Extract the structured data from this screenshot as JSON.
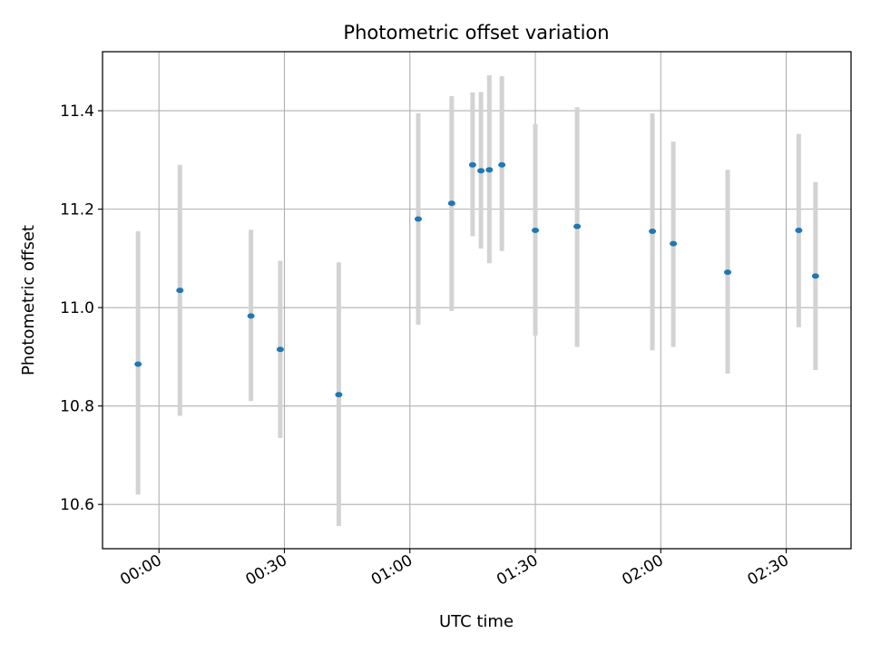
{
  "chart_data": {
    "type": "scatter",
    "title": "Photometric offset variation",
    "xlabel": "UTC time",
    "ylabel": "Photometric offset",
    "x_axis_kind": "time",
    "xlim": [
      "23:46:30",
      "02:45:30"
    ],
    "ylim": [
      10.51,
      11.52
    ],
    "x_ticks": [
      "00:00",
      "00:30",
      "01:00",
      "01:30",
      "02:00",
      "02:30"
    ],
    "y_ticks": [
      "10.6",
      "10.8",
      "11.0",
      "11.2",
      "11.4"
    ],
    "grid": true,
    "marker_color": "#1f77b4",
    "errorbar_color": "#d3d3d3",
    "points": [
      {
        "x": "23:55",
        "y": 10.885,
        "ylow": 10.62,
        "yhigh": 11.155
      },
      {
        "x": "00:05",
        "y": 11.035,
        "ylow": 10.78,
        "yhigh": 11.29
      },
      {
        "x": "00:22",
        "y": 10.983,
        "ylow": 10.81,
        "yhigh": 11.158
      },
      {
        "x": "00:29",
        "y": 10.915,
        "ylow": 10.735,
        "yhigh": 11.095
      },
      {
        "x": "00:43",
        "y": 10.823,
        "ylow": 10.556,
        "yhigh": 11.092
      },
      {
        "x": "01:02",
        "y": 11.18,
        "ylow": 10.965,
        "yhigh": 11.395
      },
      {
        "x": "01:10",
        "y": 11.212,
        "ylow": 10.993,
        "yhigh": 11.43
      },
      {
        "x": "01:15",
        "y": 11.29,
        "ylow": 11.145,
        "yhigh": 11.437
      },
      {
        "x": "01:17",
        "y": 11.278,
        "ylow": 11.12,
        "yhigh": 11.438
      },
      {
        "x": "01:19",
        "y": 11.28,
        "ylow": 11.09,
        "yhigh": 11.472
      },
      {
        "x": "01:22",
        "y": 11.29,
        "ylow": 11.115,
        "yhigh": 11.47
      },
      {
        "x": "01:30",
        "y": 11.157,
        "ylow": 10.943,
        "yhigh": 11.373
      },
      {
        "x": "01:40",
        "y": 11.165,
        "ylow": 10.92,
        "yhigh": 11.407
      },
      {
        "x": "01:58",
        "y": 11.155,
        "ylow": 10.913,
        "yhigh": 11.395
      },
      {
        "x": "02:03",
        "y": 11.13,
        "ylow": 10.92,
        "yhigh": 11.337
      },
      {
        "x": "02:16",
        "y": 11.072,
        "ylow": 10.866,
        "yhigh": 11.28
      },
      {
        "x": "02:33",
        "y": 11.157,
        "ylow": 10.96,
        "yhigh": 11.353
      },
      {
        "x": "02:37",
        "y": 11.064,
        "ylow": 10.873,
        "yhigh": 11.255
      }
    ]
  }
}
